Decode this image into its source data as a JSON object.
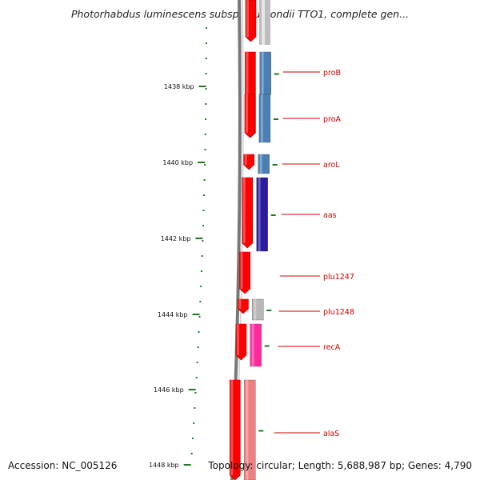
{
  "title": "Photorhabdus luminescens subsp. laumondii TTO1, complete gen...",
  "accession": "Accession: NC_005126",
  "summary": "Topology: circular; Length: 5,688,987 bp; Genes: 4,790",
  "colors": {
    "backbone": "#888888",
    "forward_strand": "#ff0000",
    "tick": "#1f7a1f",
    "label": "#cc0000",
    "label_line": "#cc0000"
  },
  "scale": {
    "ticks": [
      "1438 kbp",
      "1440 kbp",
      "1442 kbp",
      "1444 kbp",
      "1446 kbp",
      "1448 kbp"
    ]
  },
  "genes": [
    {
      "name": "proB",
      "color": "#4a7fb5"
    },
    {
      "name": "proA",
      "color": "#4a7fb5"
    },
    {
      "name": "aroL",
      "color": "#4a7fb5"
    },
    {
      "name": "aas",
      "color": "#2a1aa0"
    },
    {
      "name": "plu1247",
      "color": ""
    },
    {
      "name": "plu1248",
      "color": "#b8b8b8"
    },
    {
      "name": "recA",
      "color": "#ff2aa0"
    },
    {
      "name": "alaS",
      "color": "#f08080"
    }
  ]
}
